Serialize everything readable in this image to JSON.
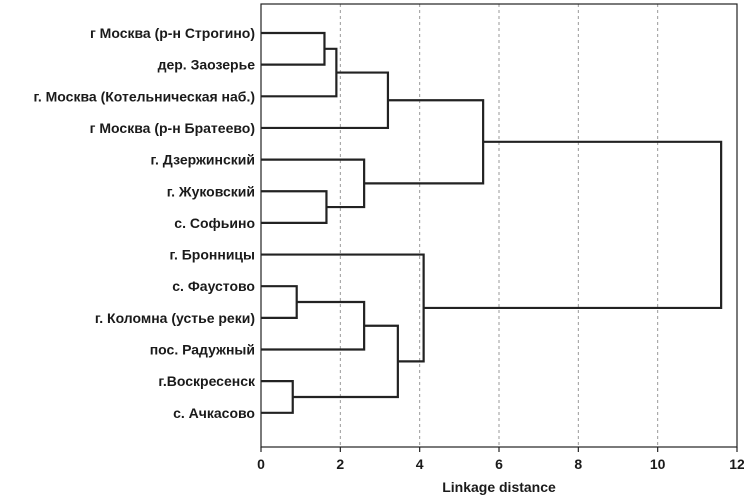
{
  "chart_data": {
    "type": "dendrogram",
    "title": "",
    "xlabel": "Linkage distance",
    "ylabel": "",
    "xlim": [
      0,
      12
    ],
    "xticks": [
      0,
      2,
      4,
      6,
      8,
      10,
      12
    ],
    "grid": true,
    "leaves": [
      "г Москва (р-н Строгино)",
      "дер. Заозерье",
      "г. Москва (Котельническая наб.)",
      "г Москва (р-н Братеево)",
      "г. Дзержинский",
      "г. Жуковский",
      "с. Софьино",
      "г. Бронницы",
      "с. Фаустово",
      "г. Коломна (устье реки)",
      "пос. Радужный",
      "г.Воскресенск",
      "с. Ачкасово"
    ],
    "merges": [
      {
        "id": "m1",
        "left": "L0",
        "right": "L1",
        "distance": 1.6
      },
      {
        "id": "m2",
        "left": "m1",
        "right": "L2",
        "distance": 1.9
      },
      {
        "id": "m3",
        "left": "m2",
        "right": "L3",
        "distance": 3.2
      },
      {
        "id": "m4",
        "left": "L5",
        "right": "L6",
        "distance": 1.65
      },
      {
        "id": "m5",
        "left": "L4",
        "right": "m4",
        "distance": 2.6
      },
      {
        "id": "m6",
        "left": "m3",
        "right": "m5",
        "distance": 5.6
      },
      {
        "id": "m7",
        "left": "L8",
        "right": "L9",
        "distance": 0.9
      },
      {
        "id": "m8",
        "left": "m7",
        "right": "L10",
        "distance": 2.6
      },
      {
        "id": "m9",
        "left": "L11",
        "right": "L12",
        "distance": 0.8
      },
      {
        "id": "m10",
        "left": "m8",
        "right": "m9",
        "distance": 3.45
      },
      {
        "id": "m11",
        "left": "L7",
        "right": "m10",
        "distance": 4.1
      },
      {
        "id": "m12",
        "left": "m6",
        "right": "m11",
        "distance": 11.6
      }
    ]
  }
}
